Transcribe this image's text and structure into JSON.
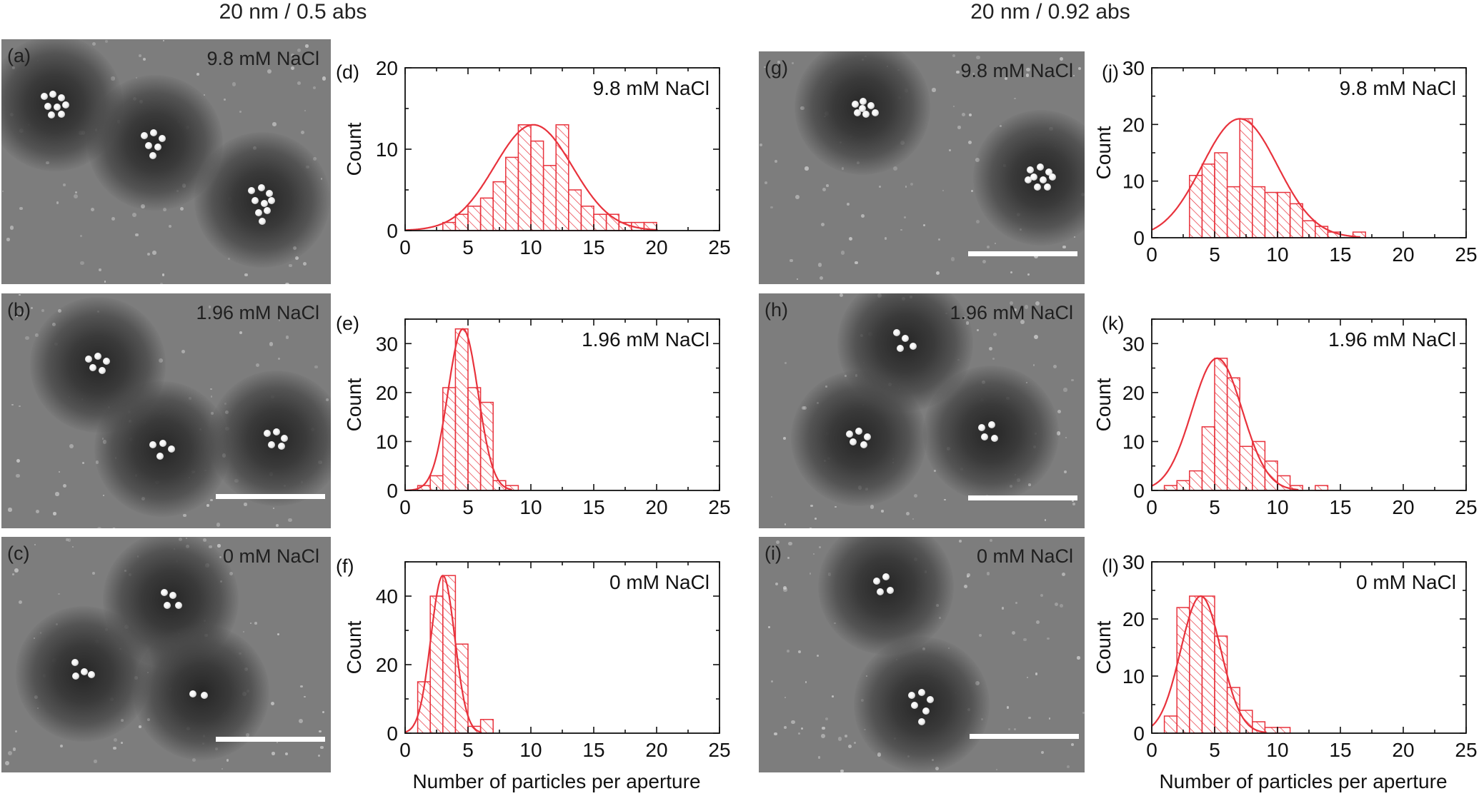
{
  "column_headers": [
    "20 nm / 0.5 abs",
    "20 nm / 0.92 abs"
  ],
  "sem_panels": [
    {
      "letter": "(a)",
      "salt_label": "9.8 mM NaCl"
    },
    {
      "letter": "(b)",
      "salt_label": "1.96 mM NaCl"
    },
    {
      "letter": "(c)",
      "salt_label": "0 mM NaCl"
    },
    {
      "letter": "(g)",
      "salt_label": "9.8 mM NaCl"
    },
    {
      "letter": "(h)",
      "salt_label": "1.96 mM NaCl"
    },
    {
      "letter": "(i)",
      "salt_label": "0 mM NaCl"
    }
  ],
  "colors": {
    "histogram": "#e8323c",
    "axis": "#111111",
    "sem_surface": "#7d7d7d",
    "scale_bar": "#ffffff"
  },
  "chart_data": [
    {
      "type": "bar",
      "panel_label": "(d)",
      "annotation": "9.8 mM NaCl",
      "ylabel": "Count",
      "xlabel": "",
      "xlim": [
        0,
        25
      ],
      "ylim": [
        0,
        20
      ],
      "x_ticks": [
        0,
        5,
        10,
        15,
        20,
        25
      ],
      "y_ticks": [
        0,
        10,
        20
      ],
      "bin_width": 1,
      "bin_starts": [
        3,
        4,
        5,
        6,
        7,
        8,
        9,
        10,
        11,
        12,
        13,
        14,
        15,
        16,
        17,
        18,
        19
      ],
      "counts": [
        1,
        2,
        3,
        4,
        6,
        9,
        13,
        11,
        8,
        13,
        5,
        3,
        2,
        2,
        1,
        1,
        1
      ],
      "fit": {
        "type": "gaussian",
        "amplitude": 13,
        "mean": 10.2,
        "sigma": 3.1
      }
    },
    {
      "type": "bar",
      "panel_label": "(e)",
      "annotation": "1.96 mM NaCl",
      "ylabel": "Count",
      "xlabel": "",
      "xlim": [
        0,
        25
      ],
      "ylim": [
        0,
        35
      ],
      "x_ticks": [
        0,
        5,
        10,
        15,
        20,
        25
      ],
      "y_ticks": [
        0,
        10,
        20,
        30
      ],
      "bin_width": 1,
      "bin_starts": [
        1,
        2,
        3,
        4,
        5,
        6,
        7,
        8
      ],
      "counts": [
        1,
        3,
        21,
        33,
        21,
        18,
        2,
        1
      ],
      "fit": {
        "type": "gaussian",
        "amplitude": 33,
        "mean": 4.6,
        "sigma": 1.2
      }
    },
    {
      "type": "bar",
      "panel_label": "(f)",
      "annotation": "0 mM NaCl",
      "ylabel": "Count",
      "xlabel": "Number of particles per aperture",
      "xlim": [
        0,
        25
      ],
      "ylim": [
        0,
        50
      ],
      "x_ticks": [
        0,
        5,
        10,
        15,
        20,
        25
      ],
      "y_ticks": [
        0,
        20,
        40
      ],
      "bin_width": 1,
      "bin_starts": [
        1,
        2,
        3,
        4,
        5,
        6
      ],
      "counts": [
        15,
        40,
        46,
        26,
        2,
        4
      ],
      "fit": {
        "type": "gaussian",
        "amplitude": 46,
        "mean": 3.0,
        "sigma": 0.95
      }
    },
    {
      "type": "bar",
      "panel_label": "(j)",
      "annotation": "9.8 mM NaCl",
      "ylabel": "Count",
      "xlabel": "",
      "xlim": [
        0,
        25
      ],
      "ylim": [
        0,
        30
      ],
      "x_ticks": [
        0,
        5,
        10,
        15,
        20,
        25
      ],
      "y_ticks": [
        0,
        10,
        20,
        30
      ],
      "bin_width": 1,
      "bin_starts": [
        3,
        4,
        5,
        6,
        7,
        8,
        9,
        10,
        11,
        12,
        13,
        14,
        16
      ],
      "counts": [
        11,
        13,
        15,
        9,
        21,
        9,
        8,
        8,
        6,
        3,
        2,
        1,
        1
      ],
      "fit": {
        "type": "gaussian",
        "amplitude": 21,
        "mean": 7.0,
        "sigma": 3.0
      }
    },
    {
      "type": "bar",
      "panel_label": "(k)",
      "annotation": "1.96 mM NaCl",
      "ylabel": "Count",
      "xlabel": "",
      "xlim": [
        0,
        25
      ],
      "ylim": [
        0,
        35
      ],
      "x_ticks": [
        0,
        5,
        10,
        15,
        20,
        25
      ],
      "y_ticks": [
        0,
        10,
        20,
        30
      ],
      "bin_width": 1,
      "bin_starts": [
        1,
        2,
        3,
        4,
        5,
        6,
        7,
        8,
        9,
        10,
        11,
        13
      ],
      "counts": [
        1,
        2,
        4,
        13,
        27,
        23,
        9,
        10,
        6,
        3,
        1,
        1
      ],
      "fit": {
        "type": "gaussian",
        "amplitude": 27,
        "mean": 5.2,
        "sigma": 2.0
      }
    },
    {
      "type": "bar",
      "panel_label": "(l)",
      "annotation": "0 mM NaCl",
      "ylabel": "Count",
      "xlabel": "Number of particles per aperture",
      "xlim": [
        0,
        25
      ],
      "ylim": [
        0,
        30
      ],
      "x_ticks": [
        0,
        5,
        10,
        15,
        20,
        25
      ],
      "y_ticks": [
        0,
        10,
        20,
        30
      ],
      "bin_width": 1,
      "bin_starts": [
        1,
        2,
        3,
        4,
        5,
        6,
        7,
        8,
        9,
        10
      ],
      "counts": [
        3,
        22,
        24,
        24,
        17,
        8,
        4,
        2,
        1,
        1
      ],
      "fit": {
        "type": "gaussian",
        "amplitude": 24,
        "mean": 3.9,
        "sigma": 1.6
      }
    }
  ]
}
